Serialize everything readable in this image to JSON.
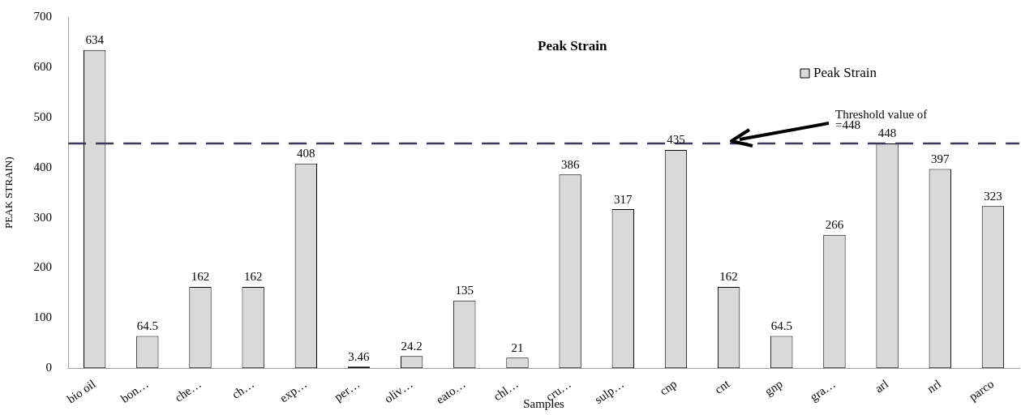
{
  "chart_data": {
    "type": "bar",
    "title": "Peak Strain",
    "xlabel": "Samples",
    "ylabel": "PEAK STRAIN)",
    "categories": [
      "bio oil",
      "bon…",
      "che…",
      "ch…",
      "exp…",
      "per…",
      "oliv…",
      "eato…",
      "chl…",
      "cru…",
      "sulp…",
      "cnp",
      "cnt",
      "gnp",
      "gra…",
      "arl",
      "nrl",
      "parco"
    ],
    "series": [
      {
        "name": "Peak Strain",
        "color": "#d9d9d9",
        "values": [
          634,
          64.5,
          162,
          162,
          408,
          3.46,
          24.2,
          135,
          21,
          386,
          317,
          435,
          162,
          64.5,
          266,
          448,
          397,
          323
        ]
      }
    ],
    "ylim": [
      0,
      700
    ],
    "yticks": [
      0,
      100,
      200,
      300,
      400,
      500,
      600,
      700
    ],
    "ref_lines": [
      {
        "axis": "y",
        "value": 448,
        "label": "Threshold value of\n=448",
        "color": "#3f3a5c",
        "line_style": "dashed"
      }
    ],
    "data_labels": true,
    "legend": "top right",
    "grid": false
  }
}
